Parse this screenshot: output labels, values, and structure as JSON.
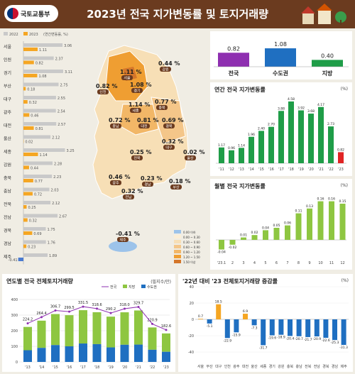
{
  "header": {
    "org": "국토교통부",
    "title": "2023년 전국 지가변동률 및 토지거래량"
  },
  "colors": {
    "c2022": "#c9c9c9",
    "c2023": "#f5a623",
    "brown": "#6b3b1f",
    "green": "#1f9d48",
    "blue": "#1f6fc1",
    "purple": "#8e2fb0"
  },
  "left_chart": {
    "legend": [
      "2022",
      "2023",
      "(연간변동률, %)"
    ],
    "chart_data": {
      "type": "bar",
      "categories": [
        "서울",
        "인천",
        "경기",
        "부산",
        "대구",
        "광주",
        "대전",
        "울산",
        "세종",
        "강원",
        "충북",
        "충남",
        "전북",
        "전남",
        "경북",
        "경남",
        "제주"
      ],
      "series": [
        {
          "name": "2022",
          "values": [
            3.06,
            2.37,
            3.11,
            2.75,
            2.55,
            2.54,
            2.57,
            2.12,
            3.25,
            2.28,
            2.23,
            2.03,
            2.12,
            2.67,
            1.75,
            1.76,
            1.89
          ]
        },
        {
          "name": "2023",
          "values": [
            1.11,
            0.82,
            1.08,
            0.18,
            0.32,
            0.46,
            0.81,
            0.02,
            1.14,
            0.44,
            0.77,
            0.72,
            0.25,
            0.32,
            0.69,
            0.23,
            -0.41
          ]
        }
      ]
    }
  },
  "map": {
    "regions": [
      {
        "name": "서울",
        "value": "1.11 %"
      },
      {
        "name": "인천",
        "value": "0.82 %"
      },
      {
        "name": "경기",
        "value": "1.08 %"
      },
      {
        "name": "강원",
        "value": "0.44 %"
      },
      {
        "name": "충북",
        "value": "0.77 %"
      },
      {
        "name": "세종",
        "value": "1.14 %"
      },
      {
        "name": "충남",
        "value": "0.72 %"
      },
      {
        "name": "대전",
        "value": "0.81 %"
      },
      {
        "name": "경북",
        "value": "0.69 %"
      },
      {
        "name": "대구",
        "value": "0.32 %"
      },
      {
        "name": "울산",
        "value": "0.02 %"
      },
      {
        "name": "전북",
        "value": "0.25 %"
      },
      {
        "name": "경남",
        "value": "0.23 %"
      },
      {
        "name": "부산",
        "value": "0.18 %"
      },
      {
        "name": "광주",
        "value": "0.46 %"
      },
      {
        "name": "전남",
        "value": "0.32 %"
      },
      {
        "name": "제주",
        "value": "-0.41 %"
      }
    ],
    "legend": [
      "0.00 이하",
      "0.00 ~ 0.30",
      "0.30 ~ 0.60",
      "0.60 ~ 0.90",
      "0.90 ~ 1.20",
      "1.20 ~ 1.50",
      "1.50 이상"
    ]
  },
  "summary": {
    "chart_data": {
      "type": "bar",
      "categories": [
        "전국",
        "수도권",
        "지방"
      ],
      "values": [
        0.82,
        1.08,
        0.4
      ]
    }
  },
  "annual": {
    "title": "연간 전국 지가변동률",
    "unit": "(%)",
    "chart_data": {
      "type": "bar",
      "categories": [
        "'11",
        "'12",
        "'13",
        "'14",
        "'15",
        "'16",
        "'17",
        "'18",
        "'19",
        "'20",
        "'21",
        "'22",
        "'23"
      ],
      "values": [
        1.17,
        0.96,
        1.14,
        1.96,
        2.4,
        2.7,
        3.88,
        4.58,
        3.92,
        3.68,
        4.17,
        2.73,
        0.82
      ]
    }
  },
  "monthly": {
    "title": "월별 전국 지가변동률",
    "unit": "(%)",
    "chart_data": {
      "type": "bar",
      "categories": [
        "'23.1",
        "2",
        "3",
        "4",
        "5",
        "6",
        "7",
        "8",
        "9",
        "10",
        "11",
        "12"
      ],
      "values": [
        -0.04,
        -0.02,
        0.01,
        0.02,
        0.04,
        0.05,
        0.06,
        0.11,
        0.13,
        0.16,
        0.16,
        0.15
      ]
    }
  },
  "transactions": {
    "title": "연도별 전국 전체토지거래량",
    "unit": "(필지수/만)",
    "legend": [
      "전국",
      "지방",
      "수도권"
    ],
    "chart_data": {
      "type": "bar",
      "categories": [
        "'13",
        "'14",
        "'15",
        "'16",
        "'17",
        "'18",
        "'19",
        "'20",
        "'21",
        "'22",
        "'23"
      ],
      "series": [
        {
          "name": "전국",
          "values": [
            224.2,
            264.4,
            306.7,
            299.5,
            331.5,
            318.6,
            290.2,
            318.0,
            329.7,
            220.9,
            182.6
          ]
        },
        {
          "name": "수도권",
          "values": [
            75,
            90,
            108,
            100,
            118,
            114,
            93,
            110,
            111,
            78,
            65
          ]
        }
      ],
      "yticks": [
        0,
        100,
        200,
        300,
        400
      ]
    }
  },
  "change": {
    "title": "'22년 대비 '23 전체토지거래량 증감률",
    "unit": "(%)",
    "chart_data": {
      "type": "bar",
      "categories": [
        "서울",
        "부산",
        "대구",
        "인천",
        "광주",
        "대전",
        "울산",
        "세종",
        "경기",
        "강원",
        "충북",
        "충남",
        "전북",
        "전남",
        "경북",
        "경남",
        "제주"
      ],
      "values": [
        0.7,
        -5.1,
        18.5,
        -22.9,
        -15.9,
        6.9,
        -7.3,
        -31.7,
        -19.6,
        -18.9,
        -20.4,
        -20.7,
        -21.7,
        -20.9,
        -22.6,
        -25.3,
        -31.3
      ],
      "yticks": [
        40,
        20,
        0,
        -20,
        -40
      ]
    }
  }
}
